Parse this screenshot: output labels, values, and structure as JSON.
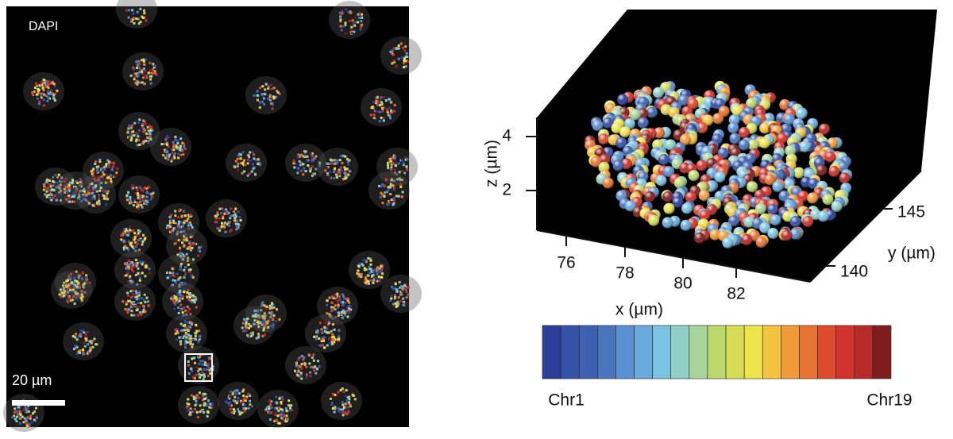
{
  "left_panel": {
    "label": "DAPI",
    "scale_bar": "20 µm"
  },
  "right_panel": {
    "z_axis": {
      "label": "z (µm)",
      "ticks": [
        "4",
        "2"
      ]
    },
    "x_axis": {
      "label": "x (µm)",
      "ticks": [
        "76",
        "78",
        "80",
        "82"
      ]
    },
    "y_axis": {
      "label": "y (µm)",
      "ticks": [
        "145",
        "140"
      ]
    },
    "colorbar": {
      "start": "Chr1",
      "end": "Chr19",
      "colors": [
        "#2b3f9a",
        "#3452a6",
        "#3d61b0",
        "#4a74bb",
        "#5a90cf",
        "#6aaadc",
        "#7cc3e2",
        "#8fcfc6",
        "#a6d49a",
        "#bcd86c",
        "#d5dd56",
        "#ece44a",
        "#f3c23e",
        "#ef9c38",
        "#e77433",
        "#dd4a2e",
        "#d2332c",
        "#b52b2a",
        "#7f1d1d"
      ]
    }
  }
}
